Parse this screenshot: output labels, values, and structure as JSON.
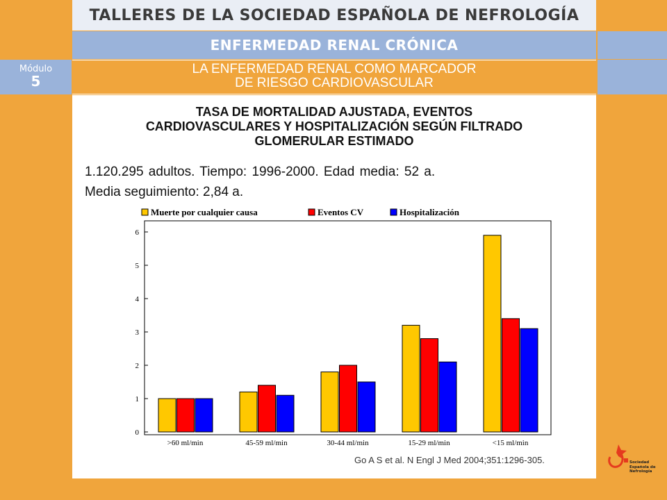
{
  "header": {
    "title": "TALLERES DE LA SOCIEDAD ESPAÑOLA DE NEFROLOGÍA",
    "subtitle": "ENFERMEDAD RENAL CRÓNICA",
    "section_line1": "LA ENFERMEDAD RENAL COMO MARCADOR",
    "section_line2": "DE RIESGO CARDIOVASCULAR",
    "module_word": "Módulo",
    "module_number": "5"
  },
  "slide": {
    "title_line1": "TASA DE MORTALIDAD AJUSTADA, EVENTOS",
    "title_line2": "CARDIOVASCULARES Y HOSPITALIZACIÓN SEGÚN FILTRADO",
    "title_line3": "GLOMERULAR ESTIMADO",
    "study_line1": "1.120.295 adultos. Tiempo: 1996-2000. Edad media: 52 a.",
    "study_line2": "Media seguimiento: 2,84 a.",
    "citation": "Go A S et al. N Engl J Med 2004;351:1296-305."
  },
  "logo": {
    "text_lines": [
      "Sociedad",
      "Española de",
      "Nefrología"
    ]
  },
  "colors": {
    "background": "#F0A53C",
    "band_blue": "#9AB3DA",
    "series": [
      "#FFC800",
      "#FF0000",
      "#0000FF"
    ]
  },
  "chart_data": {
    "type": "bar",
    "categories": [
      ">60 ml/min",
      "45-59 ml/min",
      "30-44 ml/min",
      "15-29 ml/min",
      "<15 ml/min"
    ],
    "series": [
      {
        "name": "Muerte por cualquier causa",
        "values": [
          1.0,
          1.2,
          1.8,
          3.2,
          5.9
        ]
      },
      {
        "name": "Eventos CV",
        "values": [
          1.0,
          1.4,
          2.0,
          2.8,
          3.4
        ]
      },
      {
        "name": "Hospitalización",
        "values": [
          1.0,
          1.1,
          1.5,
          2.1,
          3.1
        ]
      }
    ],
    "ylim": [
      0,
      6
    ],
    "yticks": [
      "0",
      "1",
      "2",
      "3",
      "4",
      "5",
      "6"
    ],
    "legend_position": "top",
    "grid": false
  }
}
